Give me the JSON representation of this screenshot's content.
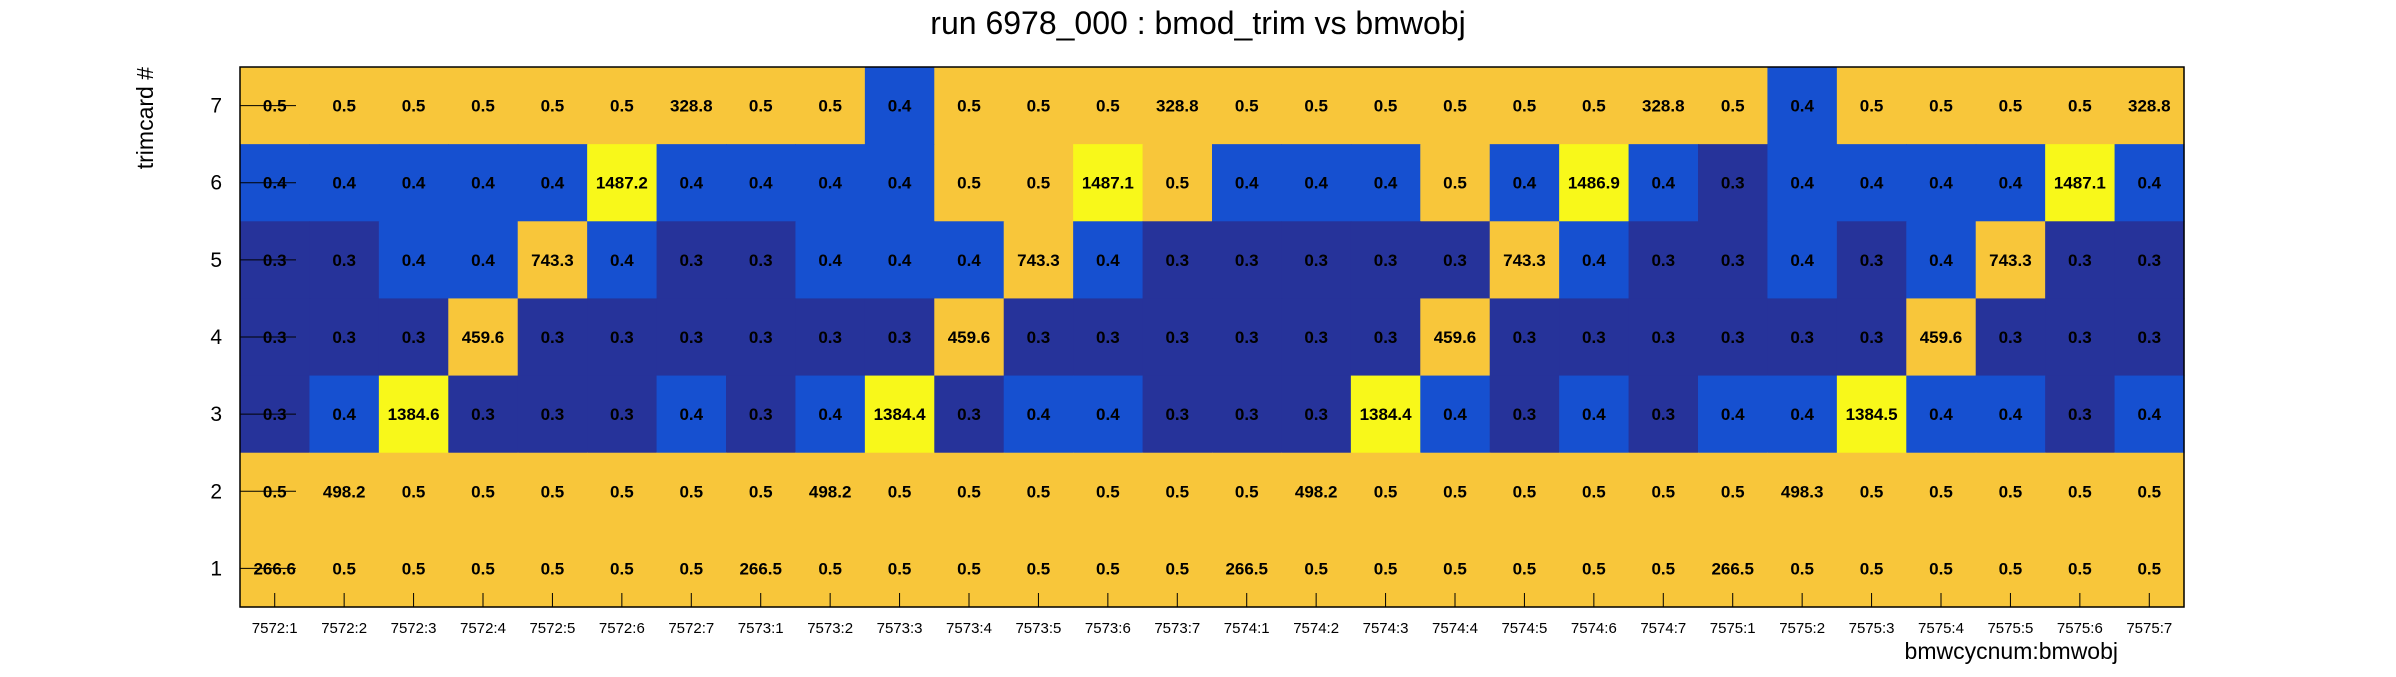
{
  "chart_data": {
    "type": "heatmap",
    "title": "run 6978_000 : bmod_trim vs bmwobj",
    "xlabel": "bmwcycnum:bmwobj",
    "ylabel": "trimcard #",
    "categories": [
      "7572:1",
      "7572:2",
      "7572:3",
      "7572:4",
      "7572:5",
      "7572:6",
      "7572:7",
      "7573:1",
      "7573:2",
      "7573:3",
      "7573:4",
      "7573:5",
      "7573:6",
      "7573:7",
      "7574:1",
      "7574:2",
      "7574:3",
      "7574:4",
      "7574:5",
      "7574:6",
      "7574:7",
      "7575:1",
      "7575:2",
      "7575:3",
      "7575:4",
      "7575:5",
      "7575:6",
      "7575:7"
    ],
    "y_categories": [
      "7",
      "6",
      "5",
      "4",
      "3",
      "2",
      "1"
    ],
    "values": [
      [
        "0.5",
        "0.5",
        "0.5",
        "0.5",
        "0.5",
        "0.5",
        "328.8",
        "0.5",
        "0.5",
        "0.4",
        "0.5",
        "0.5",
        "0.5",
        "328.8",
        "0.5",
        "0.5",
        "0.5",
        "0.5",
        "0.5",
        "0.5",
        "328.8",
        "0.5",
        "0.4",
        "0.5",
        "0.5",
        "0.5",
        "0.5",
        "328.8"
      ],
      [
        "0.4",
        "0.4",
        "0.4",
        "0.4",
        "0.4",
        "1487.2",
        "0.4",
        "0.4",
        "0.4",
        "0.4",
        "0.5",
        "0.5",
        "1487.1",
        "0.5",
        "0.4",
        "0.4",
        "0.4",
        "0.5",
        "0.4",
        "1486.9",
        "0.4",
        "0.3",
        "0.4",
        "0.4",
        "0.4",
        "0.4",
        "1487.1",
        "0.4"
      ],
      [
        "0.3",
        "0.3",
        "0.4",
        "0.4",
        "743.3",
        "0.4",
        "0.3",
        "0.3",
        "0.4",
        "0.4",
        "0.4",
        "743.3",
        "0.4",
        "0.3",
        "0.3",
        "0.3",
        "0.3",
        "0.3",
        "743.3",
        "0.4",
        "0.3",
        "0.3",
        "0.4",
        "0.3",
        "0.4",
        "743.3",
        "0.3",
        "0.3"
      ],
      [
        "0.3",
        "0.3",
        "0.3",
        "459.6",
        "0.3",
        "0.3",
        "0.3",
        "0.3",
        "0.3",
        "0.3",
        "459.6",
        "0.3",
        "0.3",
        "0.3",
        "0.3",
        "0.3",
        "0.3",
        "459.6",
        "0.3",
        "0.3",
        "0.3",
        "0.3",
        "0.3",
        "0.3",
        "459.6",
        "0.3",
        "0.3",
        "0.3"
      ],
      [
        "0.3",
        "0.4",
        "1384.6",
        "0.3",
        "0.3",
        "0.3",
        "0.4",
        "0.3",
        "0.4",
        "1384.4",
        "0.3",
        "0.4",
        "0.4",
        "0.3",
        "0.3",
        "0.3",
        "1384.4",
        "0.4",
        "0.3",
        "0.4",
        "0.3",
        "0.4",
        "0.4",
        "1384.5",
        "0.4",
        "0.4",
        "0.3",
        "0.4"
      ],
      [
        "0.5",
        "498.2",
        "0.5",
        "0.5",
        "0.5",
        "0.5",
        "0.5",
        "0.5",
        "498.2",
        "0.5",
        "0.5",
        "0.5",
        "0.5",
        "0.5",
        "0.5",
        "498.2",
        "0.5",
        "0.5",
        "0.5",
        "0.5",
        "0.5",
        "0.5",
        "498.3",
        "0.5",
        "0.5",
        "0.5",
        "0.5",
        "0.5"
      ],
      [
        "266.6",
        "0.5",
        "0.5",
        "0.5",
        "0.5",
        "0.5",
        "0.5",
        "266.5",
        "0.5",
        "0.5",
        "0.5",
        "0.5",
        "0.5",
        "0.5",
        "266.5",
        "0.5",
        "0.5",
        "0.5",
        "0.5",
        "0.5",
        "0.5",
        "266.5",
        "0.5",
        "0.5",
        "0.5",
        "0.5",
        "0.5",
        "0.5"
      ]
    ],
    "colors": {
      "very_low": "#26339a",
      "low": "#1650d0",
      "mid": "#f8c63a",
      "high": "#f8f81a",
      "text": "#000000"
    },
    "thresholds": {
      "very_low_max": 0.35,
      "low_max": 0.45,
      "mid_max": 1000
    },
    "grid": false,
    "legend": "none"
  }
}
